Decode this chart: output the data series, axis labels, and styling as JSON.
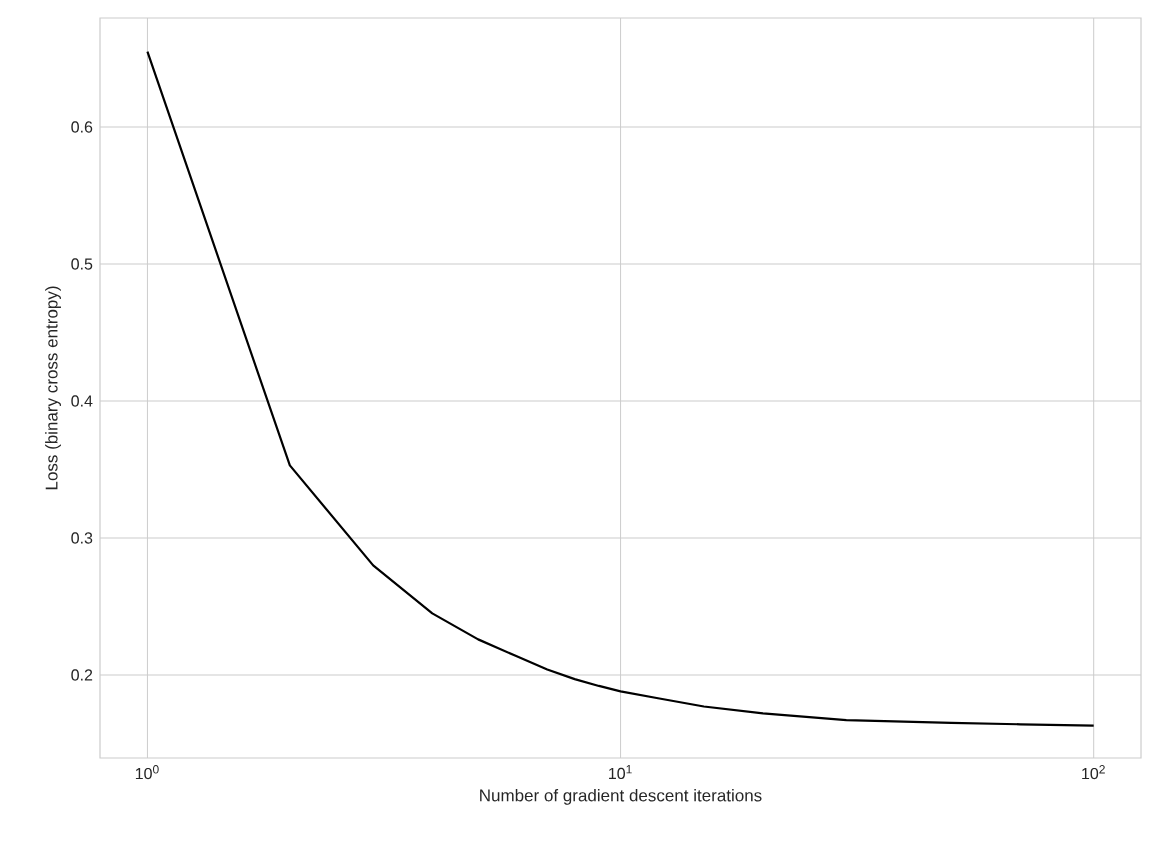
{
  "chart_data": {
    "type": "line",
    "xlabel": "Number of gradient descent iterations",
    "ylabel": "Loss (binary cross entropy)",
    "log": "x",
    "grid": true,
    "xlim": [
      0.794,
      125.9
    ],
    "ylim": [
      0.1394,
      0.6796
    ],
    "xticks": [
      {
        "value": 1,
        "label": "10$^{0}$"
      },
      {
        "value": 10,
        "label": "10$^{1}$"
      },
      {
        "value": 100,
        "label": "10$^{2}$"
      }
    ],
    "yticks": [
      0.2,
      0.3,
      0.4,
      0.5,
      0.6
    ],
    "series": [
      {
        "color": "#000000",
        "x": [
          1,
          2,
          3,
          4,
          5,
          6,
          7,
          8,
          9,
          10,
          12,
          15,
          20,
          30,
          50,
          70,
          100
        ],
        "values": [
          0.655,
          0.353,
          0.28,
          0.245,
          0.226,
          0.214,
          0.204,
          0.197,
          0.192,
          0.188,
          0.183,
          0.177,
          0.172,
          0.167,
          0.165,
          0.164,
          0.163
        ]
      }
    ]
  }
}
